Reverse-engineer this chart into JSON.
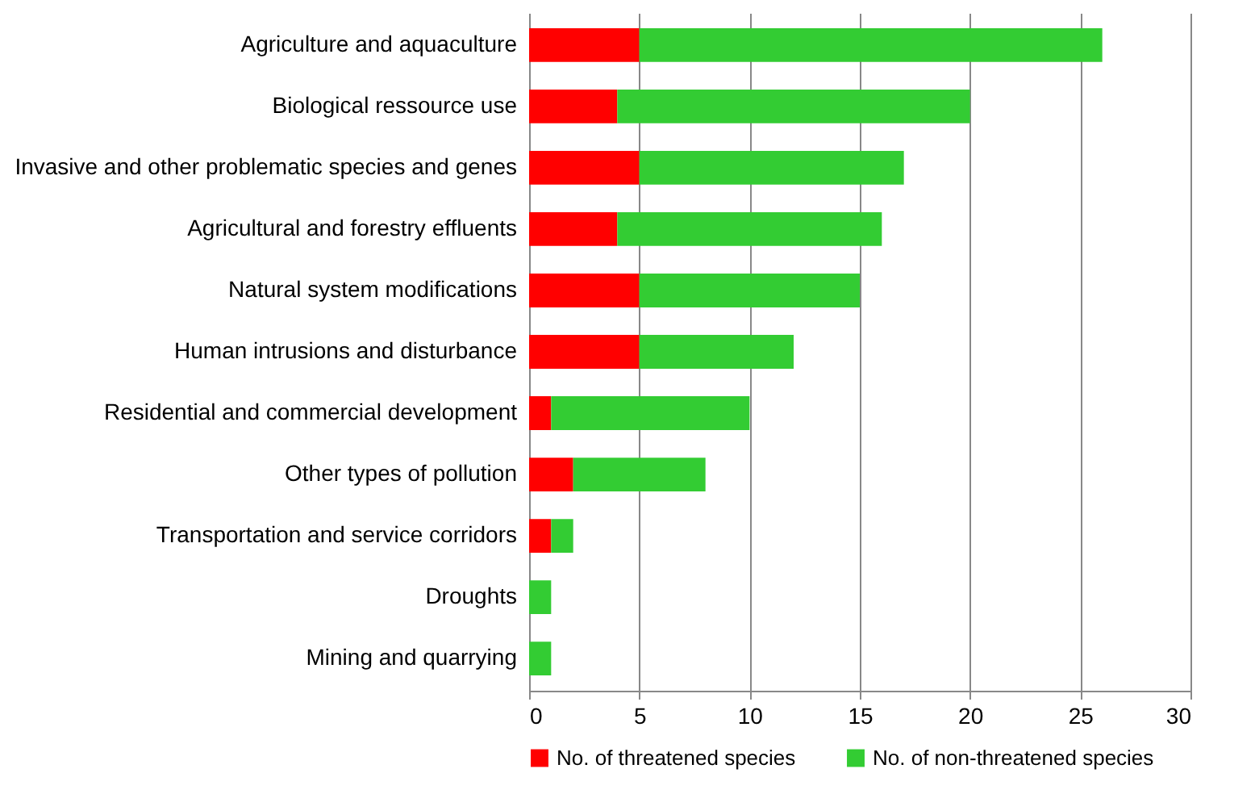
{
  "chart_data": {
    "type": "bar",
    "orientation": "horizontal",
    "stacked": true,
    "categories": [
      "Agriculture and aquaculture",
      "Biological ressource use",
      "Invasive and other problematic species and genes",
      "Agricultural and forestry effluents",
      "Natural system modifications",
      "Human intrusions and disturbance",
      "Residential and commercial development",
      "Other types of pollution",
      "Transportation and service corridors",
      "Droughts",
      "Mining and quarrying"
    ],
    "series": [
      {
        "name": "No. of threatened species",
        "color": "#ff0000",
        "values": [
          5,
          4,
          5,
          4,
          5,
          5,
          1,
          2,
          1,
          0,
          0
        ]
      },
      {
        "name": "No. of non-threatened species",
        "color": "#33cc33",
        "values": [
          21,
          16,
          12,
          12,
          10,
          7,
          9,
          6,
          1,
          1,
          1
        ]
      }
    ],
    "xlim": [
      0,
      30
    ],
    "xticks": [
      0,
      5,
      10,
      15,
      20,
      25,
      30
    ],
    "grid": "x",
    "legend": "bottom"
  }
}
